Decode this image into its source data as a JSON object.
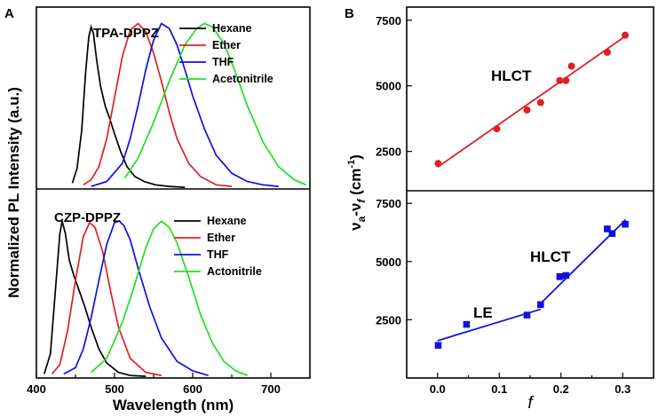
{
  "chart_data": [
    {
      "type": "line",
      "panel": "A",
      "title": "TPA-DPPZ",
      "xlabel": "Wavelength (nm)",
      "ylabel": "Normalized PL Intensity (a.u.)",
      "xlim": [
        400,
        750
      ],
      "ylim": [
        0,
        1.1
      ],
      "series": [
        {
          "name": "Hexane",
          "color": "#000000",
          "x": [
            446,
            452,
            458,
            463,
            467,
            470,
            473,
            477,
            482,
            488,
            494,
            500,
            508,
            516,
            526,
            538,
            552,
            570,
            590
          ],
          "values": [
            0.03,
            0.12,
            0.35,
            0.7,
            0.92,
            0.98,
            0.94,
            0.78,
            0.62,
            0.5,
            0.42,
            0.33,
            0.22,
            0.13,
            0.07,
            0.04,
            0.02,
            0.01,
            0.005
          ]
        },
        {
          "name": "Ether",
          "color": "#e02020",
          "x": [
            460,
            470,
            480,
            490,
            500,
            510,
            520,
            530,
            540,
            550,
            560,
            570,
            580,
            595,
            610,
            630,
            650
          ],
          "values": [
            0.02,
            0.05,
            0.13,
            0.3,
            0.55,
            0.8,
            0.96,
            1.0,
            0.95,
            0.82,
            0.65,
            0.46,
            0.3,
            0.15,
            0.07,
            0.02,
            0.01
          ]
        },
        {
          "name": "THF",
          "color": "#1010e0",
          "x": [
            470,
            490,
            510,
            520,
            530,
            540,
            550,
            560,
            570,
            580,
            590,
            600,
            615,
            630,
            650,
            670,
            690,
            710
          ],
          "values": [
            0.01,
            0.04,
            0.15,
            0.3,
            0.5,
            0.72,
            0.9,
            1.0,
            0.97,
            0.87,
            0.72,
            0.56,
            0.36,
            0.2,
            0.09,
            0.04,
            0.02,
            0.01
          ]
        },
        {
          "name": "Acetonitrile",
          "color": "#20e020",
          "x": [
            513,
            530,
            550,
            570,
            590,
            605,
            615,
            625,
            640,
            655,
            670,
            690,
            710,
            730,
            745
          ],
          "values": [
            0.06,
            0.18,
            0.4,
            0.65,
            0.87,
            0.97,
            1.0,
            0.98,
            0.88,
            0.7,
            0.5,
            0.28,
            0.13,
            0.05,
            0.02
          ]
        }
      ]
    },
    {
      "type": "line",
      "panel": "A",
      "title": "CZP-DPPZ",
      "xlabel": "Wavelength (nm)",
      "ylabel": "Normalized PL Intensity (a.u.)",
      "xlim": [
        400,
        750
      ],
      "ylim": [
        0,
        1.2
      ],
      "xticks": [
        "400",
        "500",
        "600",
        "700"
      ],
      "series": [
        {
          "name": "Hexane",
          "color": "#000000",
          "x": [
            410,
            418,
            425,
            430,
            433,
            437,
            442,
            448,
            455,
            462,
            470,
            480,
            490,
            505,
            520,
            540
          ],
          "values": [
            0.02,
            0.15,
            0.6,
            0.92,
            1.0,
            0.92,
            0.75,
            0.65,
            0.55,
            0.45,
            0.32,
            0.18,
            0.09,
            0.03,
            0.01,
            0.005
          ]
        },
        {
          "name": "Ether",
          "color": "#e02020",
          "x": [
            420,
            430,
            440,
            450,
            460,
            468,
            475,
            485,
            495,
            505,
            520,
            540,
            560
          ],
          "values": [
            0.02,
            0.08,
            0.3,
            0.62,
            0.9,
            0.99,
            0.96,
            0.8,
            0.55,
            0.32,
            0.12,
            0.03,
            0.01
          ]
        },
        {
          "name": "THF",
          "color": "#1010e0",
          "x": [
            435,
            450,
            460,
            470,
            480,
            490,
            500,
            506,
            512,
            520,
            530,
            545,
            560,
            580,
            600,
            620
          ],
          "values": [
            0.02,
            0.06,
            0.18,
            0.38,
            0.62,
            0.85,
            0.99,
            1.0,
            0.97,
            0.88,
            0.7,
            0.45,
            0.25,
            0.1,
            0.04,
            0.01
          ]
        },
        {
          "name": "Actonitrile",
          "color": "#20e020",
          "x": [
            470,
            490,
            510,
            525,
            540,
            550,
            560,
            570,
            580,
            595,
            610,
            625,
            640,
            655,
            670
          ],
          "values": [
            0.03,
            0.12,
            0.35,
            0.58,
            0.83,
            0.95,
            1.0,
            0.96,
            0.86,
            0.64,
            0.4,
            0.22,
            0.1,
            0.04,
            0.01
          ]
        }
      ]
    },
    {
      "type": "scatter",
      "panel": "B",
      "annotation": "HLCT",
      "xlabel": "f",
      "ylabel": "νa-νf (cm-1)",
      "xlim": [
        -0.05,
        0.35
      ],
      "ylim": [
        1000,
        8000
      ],
      "yticks": [
        "2500",
        "5000",
        "7500"
      ],
      "series": [
        {
          "name": "HLCT",
          "color": "#e02020",
          "marker": "circle",
          "x": [
            0.001,
            0.096,
            0.145,
            0.167,
            0.198,
            0.208,
            0.217,
            0.275,
            0.304
          ],
          "values": [
            2040,
            3360,
            4080,
            4360,
            5200,
            5200,
            5750,
            6280,
            6930
          ]
        }
      ],
      "fits": [
        {
          "color": "#e02020",
          "x": [
            0.0,
            0.305
          ],
          "values": [
            1900,
            6900
          ]
        }
      ]
    },
    {
      "type": "scatter",
      "panel": "B",
      "annotations": [
        "LE",
        "HLCT"
      ],
      "xlabel": "f",
      "xlim": [
        -0.05,
        0.35
      ],
      "ylim": [
        0,
        8000
      ],
      "xticks": [
        "0.0",
        "0.1",
        "0.2",
        "0.3"
      ],
      "yticks": [
        "2500",
        "5000",
        "7500"
      ],
      "series": [
        {
          "name": "CZP-DPPZ",
          "color": "#1010e0",
          "marker": "square",
          "x": [
            0.001,
            0.047,
            0.145,
            0.167,
            0.198,
            0.208,
            0.275,
            0.283,
            0.304
          ],
          "values": [
            1400,
            2300,
            2700,
            3150,
            4350,
            4400,
            6400,
            6200,
            6600
          ]
        }
      ],
      "fits": [
        {
          "color": "#1010e0",
          "x": [
            0.0,
            0.167
          ],
          "values": [
            1600,
            2950
          ]
        },
        {
          "color": "#1010e0",
          "x": [
            0.167,
            0.305
          ],
          "values": [
            3200,
            6800
          ]
        }
      ]
    }
  ],
  "labels": {
    "panelA": "A",
    "panelB": "B",
    "wavelength": "Wavelength (nm)",
    "pl_intensity": "Normalized PL Intensity (a.u.)",
    "nu": "ν",
    "sub_a": "a",
    "dash_nu": "-ν",
    "sub_f": "f",
    "cm_open": " (cm",
    "cm_exp": "-1",
    "cm_close": ")",
    "f_axis": "f"
  }
}
